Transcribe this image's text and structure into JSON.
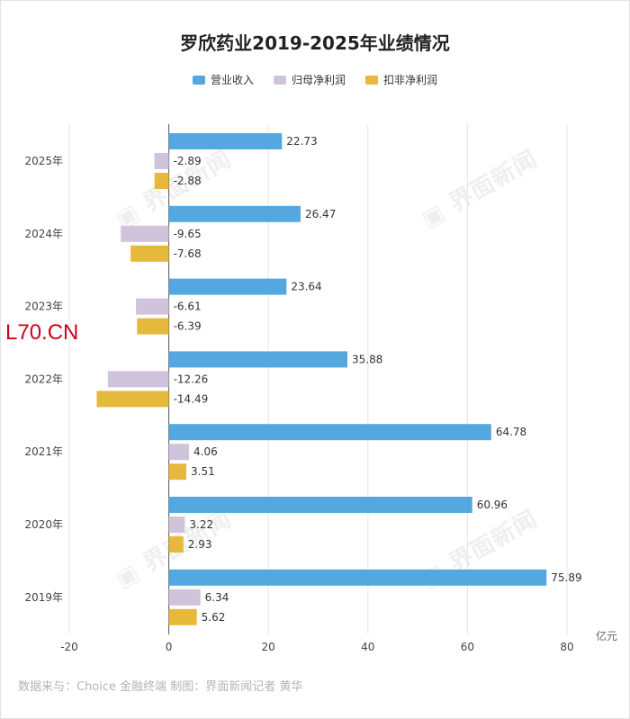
{
  "title": "罗欣药业2019-2025年业绩情况",
  "unit_label": "亿元",
  "source": "数据来与：Choice 金融终端 制图：界面新闻记者 黄华",
  "site_tag": "L70.CN",
  "watermark_text": "界面新闻",
  "chart_data": {
    "type": "bar",
    "orientation": "horizontal",
    "categories": [
      "2025年",
      "2024年",
      "2023年",
      "2022年",
      "2021年",
      "2020年",
      "2019年"
    ],
    "series": [
      {
        "name": "营业收入",
        "color": "#55a8df",
        "values": [
          22.73,
          26.47,
          23.64,
          35.88,
          64.78,
          60.96,
          75.89
        ]
      },
      {
        "name": "归母净利润",
        "color": "#d0c3dc",
        "values": [
          -2.89,
          -9.65,
          -6.61,
          -12.26,
          4.06,
          3.22,
          6.34
        ]
      },
      {
        "name": "扣非净利润",
        "color": "#e6b93c",
        "values": [
          -2.88,
          -7.68,
          -6.39,
          -14.49,
          3.51,
          2.93,
          5.62
        ]
      }
    ],
    "xlim": [
      -20,
      80
    ],
    "xticks": [
      "-20",
      "0",
      "20",
      "40",
      "60",
      "80"
    ],
    "grid": true,
    "legend_position": "top"
  }
}
